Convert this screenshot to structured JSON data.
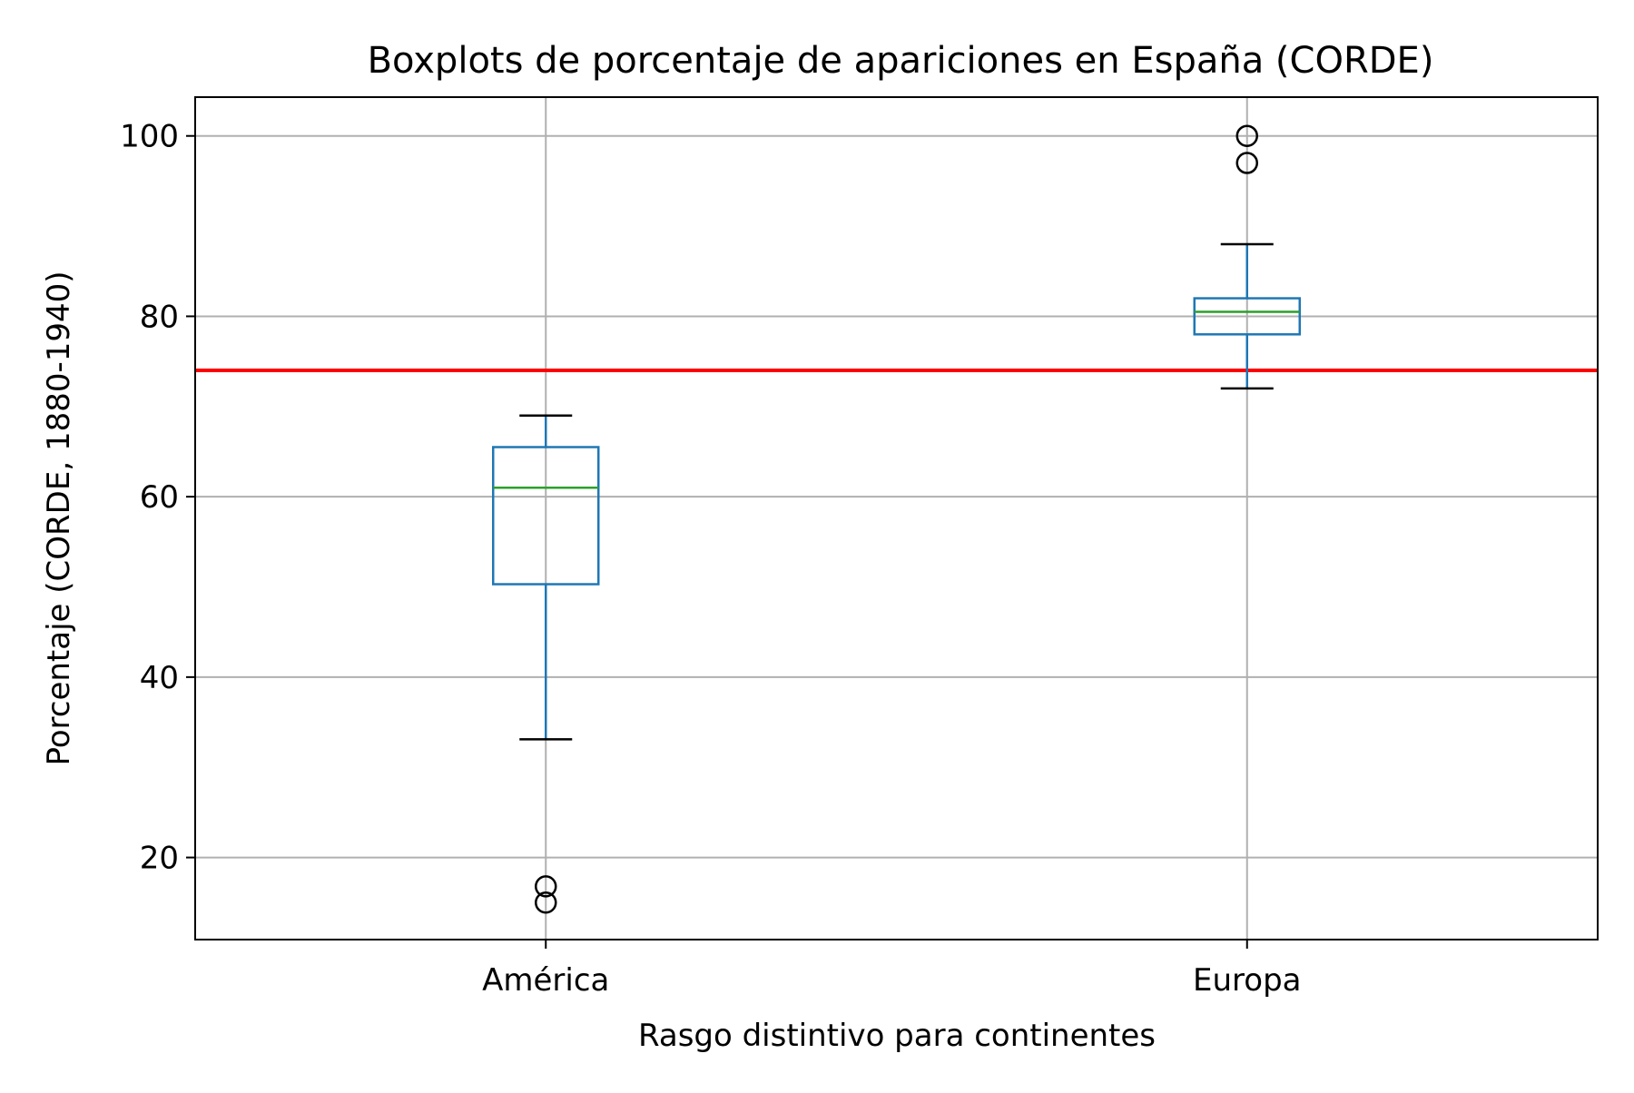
{
  "chart_data": {
    "type": "boxplot",
    "title": "Boxplots de porcentaje de apariciones en España (CORDE)",
    "xlabel": "Rasgo distintivo para continentes",
    "ylabel": "Porcentaje (CORDE, 1880-1940)",
    "categories": [
      "América",
      "Europa"
    ],
    "boxes": [
      {
        "category": "América",
        "whisker_low": 33.1,
        "q1": 50.3,
        "median": 61.0,
        "q3": 65.5,
        "whisker_high": 69.0,
        "outliers": [
          16.8,
          15.0
        ]
      },
      {
        "category": "Europa",
        "whisker_low": 72.0,
        "q1": 78.0,
        "median": 80.5,
        "q3": 82.0,
        "whisker_high": 88.0,
        "outliers": [
          100.0,
          97.0
        ]
      }
    ],
    "reference_line": {
      "y": 74.0,
      "color": "#ff0000"
    },
    "ylim": [
      10.9,
      104.3
    ],
    "yticks": [
      20,
      40,
      60,
      80,
      100
    ],
    "grid": true,
    "colors": {
      "box": "#1f77b4",
      "median": "#2ca02c",
      "whisker_cap": "#000000",
      "outlier": "#000000",
      "grid": "#b0b0b0"
    }
  }
}
